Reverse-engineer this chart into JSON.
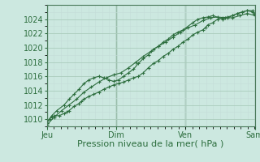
{
  "bg_color": "#cce8e0",
  "grid_major_color": "#aaccbb",
  "grid_minor_color": "#c4ddd8",
  "line_color": "#2d6e3e",
  "marker_color": "#2d6e3e",
  "xlabel": "Pression niveau de la mer( hPa )",
  "xlabel_fontsize": 8,
  "ylim": [
    1009,
    1026
  ],
  "yticks": [
    1010,
    1012,
    1014,
    1016,
    1018,
    1020,
    1022,
    1024
  ],
  "xtick_labels": [
    "Jeu",
    "Dim",
    "Ven",
    "Sam"
  ],
  "xtick_positions": [
    0.0,
    0.333,
    0.667,
    1.0
  ],
  "tick_fontsize": 7,
  "series1_x": [
    0.0,
    0.012,
    0.024,
    0.036,
    0.06,
    0.083,
    0.095,
    0.107,
    0.131,
    0.155,
    0.167,
    0.179,
    0.202,
    0.226,
    0.25,
    0.274,
    0.298,
    0.321,
    0.345,
    0.369,
    0.393,
    0.417,
    0.44,
    0.464,
    0.488,
    0.512,
    0.536,
    0.56,
    0.583,
    0.607,
    0.631,
    0.655,
    0.679,
    0.702,
    0.726,
    0.75,
    0.762,
    0.774,
    0.798,
    0.821,
    0.845,
    0.869,
    0.893,
    0.917,
    0.94,
    0.964,
    0.988,
    1.0
  ],
  "series1_y": [
    1009.5,
    1010.0,
    1010.3,
    1010.5,
    1010.5,
    1010.8,
    1011.0,
    1011.2,
    1011.8,
    1012.2,
    1012.5,
    1012.8,
    1013.2,
    1013.5,
    1013.8,
    1014.2,
    1014.5,
    1014.8,
    1015.0,
    1015.2,
    1015.5,
    1015.8,
    1016.0,
    1016.5,
    1017.2,
    1017.8,
    1018.2,
    1018.8,
    1019.2,
    1019.8,
    1020.2,
    1020.8,
    1021.2,
    1021.8,
    1022.2,
    1022.5,
    1022.8,
    1023.2,
    1023.5,
    1024.0,
    1024.2,
    1024.3,
    1024.5,
    1024.8,
    1025.0,
    1025.2,
    1025.2,
    1024.8
  ],
  "series2_x": [
    0.0,
    0.024,
    0.048,
    0.083,
    0.107,
    0.131,
    0.155,
    0.179,
    0.202,
    0.226,
    0.25,
    0.274,
    0.298,
    0.321,
    0.345,
    0.369,
    0.393,
    0.417,
    0.44,
    0.464,
    0.488,
    0.512,
    0.536,
    0.56,
    0.583,
    0.607,
    0.631,
    0.655,
    0.702,
    0.726,
    0.75,
    0.774,
    0.798,
    0.845,
    0.869,
    0.893,
    0.917,
    0.94,
    0.964,
    0.988,
    1.0
  ],
  "series2_y": [
    1009.5,
    1010.5,
    1011.2,
    1012.0,
    1012.8,
    1013.5,
    1014.2,
    1015.0,
    1015.5,
    1015.8,
    1016.0,
    1015.8,
    1015.5,
    1015.3,
    1015.5,
    1016.0,
    1016.5,
    1017.0,
    1017.8,
    1018.5,
    1019.0,
    1019.8,
    1020.2,
    1020.8,
    1021.2,
    1021.8,
    1022.2,
    1022.5,
    1023.5,
    1024.0,
    1024.2,
    1024.3,
    1024.5,
    1024.0,
    1024.2,
    1024.5,
    1024.8,
    1025.0,
    1025.2,
    1025.0,
    1024.5
  ],
  "series3_x": [
    0.0,
    0.036,
    0.071,
    0.107,
    0.143,
    0.179,
    0.214,
    0.25,
    0.286,
    0.321,
    0.357,
    0.393,
    0.429,
    0.464,
    0.5,
    0.536,
    0.571,
    0.607,
    0.643,
    0.679,
    0.714,
    0.75,
    0.786,
    0.821,
    0.857,
    0.893,
    0.929,
    0.964,
    1.0
  ],
  "series3_y": [
    1009.2,
    1010.3,
    1011.2,
    1012.0,
    1012.8,
    1013.8,
    1014.5,
    1015.2,
    1015.8,
    1016.2,
    1016.5,
    1017.2,
    1018.0,
    1018.8,
    1019.5,
    1020.2,
    1020.8,
    1021.5,
    1022.2,
    1022.8,
    1023.2,
    1023.8,
    1024.2,
    1024.3,
    1024.2,
    1024.2,
    1024.5,
    1024.8,
    1024.5
  ]
}
